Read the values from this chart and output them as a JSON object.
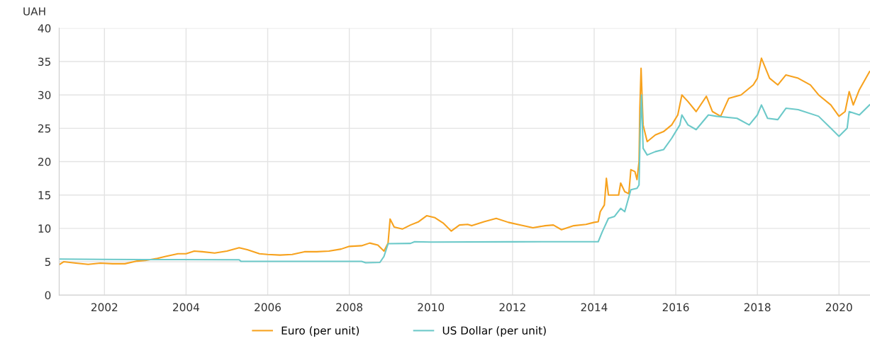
{
  "chart_data": {
    "type": "line",
    "ylabel": "UAH",
    "xlim": [
      2000.89,
      2020.76
    ],
    "ylim": [
      0,
      40
    ],
    "xticks": [
      2002,
      2004,
      2006,
      2008,
      2010,
      2012,
      2014,
      2016,
      2018,
      2020
    ],
    "yticks": [
      0,
      5,
      10,
      15,
      20,
      25,
      30,
      35,
      40
    ],
    "grid": true,
    "legend": "bottom",
    "marker": "none",
    "line_style": "solid",
    "series": [
      {
        "name": "Euro (per unit)",
        "color": "#f7a21e",
        "x": [
          2000.9,
          2001.0,
          2001.3,
          2001.6,
          2001.9,
          2002.2,
          2002.5,
          2002.8,
          2003.0,
          2003.3,
          2003.5,
          2003.8,
          2004.0,
          2004.2,
          2004.4,
          2004.7,
          2005.0,
          2005.3,
          2005.5,
          2005.8,
          2006.0,
          2006.3,
          2006.6,
          2006.9,
          2007.2,
          2007.5,
          2007.8,
          2008.0,
          2008.3,
          2008.5,
          2008.7,
          2008.85,
          2008.95,
          2009.0,
          2009.1,
          2009.3,
          2009.5,
          2009.7,
          2009.9,
          2010.1,
          2010.3,
          2010.5,
          2010.7,
          2010.9,
          2011.0,
          2011.3,
          2011.6,
          2011.9,
          2012.2,
          2012.5,
          2012.8,
          2013.0,
          2013.2,
          2013.5,
          2013.8,
          2014.0,
          2014.1,
          2014.15,
          2014.25,
          2014.3,
          2014.35,
          2014.6,
          2014.65,
          2014.75,
          2014.85,
          2014.9,
          2015.0,
          2015.05,
          2015.1,
          2015.12,
          2015.15,
          2015.2,
          2015.3,
          2015.5,
          2015.7,
          2015.9,
          2016.05,
          2016.15,
          2016.3,
          2016.5,
          2016.75,
          2016.9,
          2017.1,
          2017.3,
          2017.6,
          2017.9,
          2018.0,
          2018.1,
          2018.3,
          2018.5,
          2018.7,
          2019.0,
          2019.3,
          2019.5,
          2019.8,
          2020.0,
          2020.15,
          2020.25,
          2020.35,
          2020.5,
          2020.75
        ],
        "values": [
          4.6,
          5.0,
          4.8,
          4.6,
          4.8,
          4.7,
          4.7,
          5.1,
          5.2,
          5.5,
          5.8,
          6.2,
          6.2,
          6.6,
          6.5,
          6.3,
          6.6,
          7.1,
          6.8,
          6.2,
          6.1,
          6.0,
          6.1,
          6.5,
          6.5,
          6.6,
          6.9,
          7.3,
          7.4,
          7.8,
          7.5,
          6.6,
          7.8,
          11.4,
          10.2,
          9.9,
          10.5,
          11.0,
          11.9,
          11.6,
          10.8,
          9.6,
          10.5,
          10.6,
          10.4,
          11.0,
          11.5,
          10.9,
          10.5,
          10.1,
          10.4,
          10.5,
          9.8,
          10.4,
          10.6,
          10.9,
          11.0,
          12.5,
          13.5,
          17.5,
          15.0,
          15.0,
          16.8,
          15.5,
          15.2,
          18.8,
          18.5,
          17.3,
          20,
          28,
          34.0,
          25.5,
          23.0,
          24.0,
          24.5,
          25.5,
          27,
          30.0,
          29.0,
          27.5,
          29.8,
          27.5,
          26.8,
          29.5,
          30.0,
          31.5,
          32.5,
          35.5,
          32.5,
          31.5,
          33.0,
          32.5,
          31.5,
          30.0,
          28.5,
          26.8,
          27.5,
          30.5,
          28.5,
          30.8,
          33.5
        ]
      },
      {
        "name": "US Dollar (per unit)",
        "color": "#6cc9c9",
        "x": [
          2000.9,
          2002.0,
          2003.0,
          2005.3,
          2005.35,
          2008.3,
          2008.4,
          2008.75,
          2008.85,
          2008.95,
          2009.5,
          2009.6,
          2010.0,
          2012.0,
          2014.0,
          2014.1,
          2014.2,
          2014.35,
          2014.5,
          2014.65,
          2014.75,
          2014.9,
          2015.05,
          2015.1,
          2015.13,
          2015.16,
          2015.2,
          2015.3,
          2015.5,
          2015.7,
          2015.9,
          2016.1,
          2016.15,
          2016.3,
          2016.5,
          2016.8,
          2017.0,
          2017.5,
          2017.8,
          2018.0,
          2018.1,
          2018.25,
          2018.5,
          2018.7,
          2019.0,
          2019.5,
          2019.8,
          2020.0,
          2020.2,
          2020.25,
          2020.5,
          2020.75
        ],
        "values": [
          5.4,
          5.35,
          5.33,
          5.3,
          5.05,
          5.05,
          4.85,
          4.9,
          5.8,
          7.7,
          7.75,
          8.0,
          7.95,
          7.99,
          8.0,
          8.0,
          9.5,
          11.5,
          11.8,
          13.0,
          12.5,
          15.8,
          16.0,
          16.5,
          25,
          30.0,
          22.0,
          21.0,
          21.5,
          21.8,
          23.5,
          25.5,
          27.0,
          25.5,
          24.8,
          27.0,
          26.8,
          26.5,
          25.5,
          27.0,
          28.5,
          26.5,
          26.3,
          28.0,
          27.8,
          26.8,
          25.0,
          23.8,
          25.0,
          27.5,
          27.0,
          28.5
        ]
      }
    ]
  }
}
